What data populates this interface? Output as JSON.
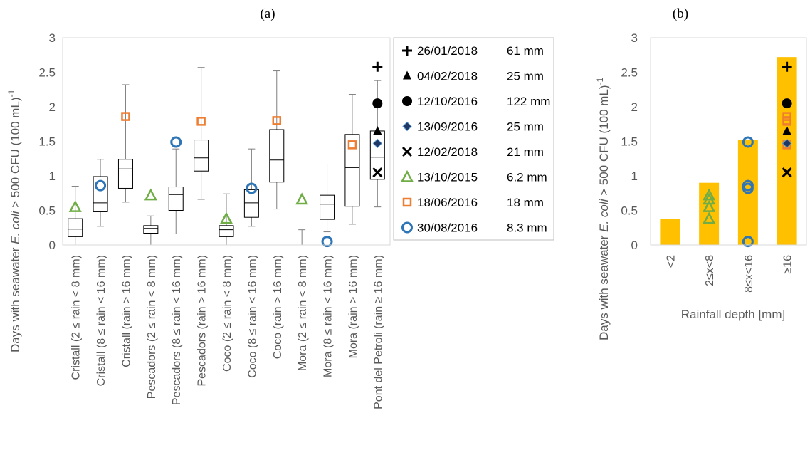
{
  "chart_data": [
    {
      "panel_label": "(a)",
      "type": "box",
      "ylabel_parts": [
        "Days with seawater ",
        "E. coli",
        " > 500 CFU (100 mL)",
        "-1"
      ],
      "ylim": [
        0,
        3
      ],
      "yticks": [
        0,
        0.5,
        1,
        1.5,
        2,
        2.5,
        3
      ],
      "ytick_labels": [
        "0",
        "0.5",
        "1",
        "1.5",
        "2",
        "2.5",
        "3"
      ],
      "grid": false,
      "categories": [
        "Cristall (2 ≤ rain < 8 mm)",
        "Cristall (8 ≤ rain < 16 mm)",
        "Cristall (rain > 16 mm)",
        "Pescadors (2 ≤ rain < 8 mm)",
        "Pescadors (8 ≤ rain < 16 mm)",
        "Pescadors (rain > 16 mm)",
        "Coco (2 ≤ rain < 8 mm)",
        "Coco (8 ≤ rain < 16 mm)",
        "Coco (rain > 16 mm)",
        "Mora (2 ≤ rain < 8 mm)",
        "Mora (8 ≤ rain < 16 mm)",
        "Mora (rain > 16 mm)",
        "Pont del Petroli (rain ≥ 16 mm)"
      ],
      "boxes": [
        {
          "min": 0.0,
          "q1": 0.12,
          "median": 0.23,
          "q3": 0.38,
          "max": 0.85
        },
        {
          "min": 0.27,
          "q1": 0.48,
          "median": 0.61,
          "q3": 0.99,
          "max": 1.24
        },
        {
          "min": 0.62,
          "q1": 0.82,
          "median": 1.1,
          "q3": 1.24,
          "max": 2.32
        },
        {
          "min": 0.0,
          "q1": 0.17,
          "median": 0.24,
          "q3": 0.28,
          "max": 0.42
        },
        {
          "min": 0.16,
          "q1": 0.5,
          "median": 0.73,
          "q3": 0.84,
          "max": 1.39
        },
        {
          "min": 0.66,
          "q1": 1.07,
          "median": 1.26,
          "q3": 1.52,
          "max": 2.57
        },
        {
          "min": 0.0,
          "q1": 0.12,
          "median": 0.22,
          "q3": 0.28,
          "max": 0.74
        },
        {
          "min": 0.27,
          "q1": 0.4,
          "median": 0.61,
          "q3": 0.8,
          "max": 1.39
        },
        {
          "min": 0.52,
          "q1": 0.91,
          "median": 1.23,
          "q3": 1.67,
          "max": 2.52
        },
        {
          "min": 0.0,
          "q1": 0.0,
          "median": 0.0,
          "q3": 0.0,
          "max": 0.22
        },
        {
          "min": 0.19,
          "q1": 0.37,
          "median": 0.59,
          "q3": 0.72,
          "max": 1.17
        },
        {
          "min": 0.3,
          "q1": 0.56,
          "median": 1.12,
          "q3": 1.6,
          "max": 2.18
        },
        {
          "min": 0.55,
          "q1": 0.95,
          "median": 1.27,
          "q3": 1.65,
          "max": 2.38
        }
      ],
      "points": [
        {
          "series": 5,
          "cat": 0,
          "y": 0.55
        },
        {
          "series": 7,
          "cat": 1,
          "y": 0.86
        },
        {
          "series": 6,
          "cat": 2,
          "y": 1.86
        },
        {
          "series": 5,
          "cat": 3,
          "y": 0.72
        },
        {
          "series": 7,
          "cat": 4,
          "y": 1.49
        },
        {
          "series": 6,
          "cat": 5,
          "y": 1.79
        },
        {
          "series": 5,
          "cat": 6,
          "y": 0.38
        },
        {
          "series": 7,
          "cat": 7,
          "y": 0.82
        },
        {
          "series": 6,
          "cat": 8,
          "y": 1.8
        },
        {
          "series": 5,
          "cat": 9,
          "y": 0.66
        },
        {
          "series": 7,
          "cat": 10,
          "y": 0.05
        },
        {
          "series": 6,
          "cat": 11,
          "y": 1.45
        },
        {
          "series": 0,
          "cat": 12,
          "y": 2.58
        },
        {
          "series": 2,
          "cat": 12,
          "y": 2.05
        },
        {
          "series": 1,
          "cat": 12,
          "y": 1.65
        },
        {
          "series": 3,
          "cat": 12,
          "y": 1.47
        },
        {
          "series": 4,
          "cat": 12,
          "y": 1.05
        }
      ],
      "legend_position": "right",
      "legend": [
        {
          "date": "26/01/2018",
          "depth": "61 mm",
          "marker": "plus",
          "color": "#000000"
        },
        {
          "date": "04/02/2018",
          "depth": "25 mm",
          "marker": "triangle-filled",
          "color": "#000000"
        },
        {
          "date": "12/10/2016",
          "depth": "122 mm",
          "marker": "circle-filled",
          "color": "#000000"
        },
        {
          "date": "13/09/2016",
          "depth": "25 mm",
          "marker": "diamond",
          "color": "#000000"
        },
        {
          "date": "12/02/2018",
          "depth": "21 mm",
          "marker": "cross",
          "color": "#000000"
        },
        {
          "date": "13/10/2015",
          "depth": "6.2 mm",
          "marker": "triangle-open",
          "color": "#70AD47"
        },
        {
          "date": "18/06/2016",
          "depth": "18 mm",
          "marker": "square-open",
          "color": "#ED7D31"
        },
        {
          "date": "30/08/2016",
          "depth": "8.3 mm",
          "marker": "circle-open",
          "color": "#2E75B6"
        }
      ]
    },
    {
      "panel_label": "(b)",
      "type": "bar",
      "ylabel_parts": [
        "Days with seawater ",
        "E. coli",
        " > 500 CFU (100 mL)",
        "-1"
      ],
      "xlabel": "Rainfall depth [mm]",
      "ylim": [
        0,
        3
      ],
      "yticks": [
        0,
        0.5,
        1,
        1.5,
        2,
        2.5,
        3
      ],
      "ytick_labels": [
        "0",
        "0.5",
        "1",
        "1.5",
        "2",
        "2.5",
        "3"
      ],
      "grid": false,
      "bar_color": "#FFC000",
      "categories": [
        "<2",
        "2≤x<8",
        "8≤x<16",
        "≥16"
      ],
      "values": [
        0.38,
        0.9,
        1.52,
        2.72
      ],
      "points": [
        {
          "series": 5,
          "cat": 1,
          "y": 0.72
        },
        {
          "series": 5,
          "cat": 1,
          "y": 0.66
        },
        {
          "series": 5,
          "cat": 1,
          "y": 0.55
        },
        {
          "series": 5,
          "cat": 1,
          "y": 0.38
        },
        {
          "series": 7,
          "cat": 2,
          "y": 1.49
        },
        {
          "series": 7,
          "cat": 2,
          "y": 0.86
        },
        {
          "series": 7,
          "cat": 2,
          "y": 0.82
        },
        {
          "series": 7,
          "cat": 2,
          "y": 0.05
        },
        {
          "series": 0,
          "cat": 3,
          "y": 2.58
        },
        {
          "series": 2,
          "cat": 3,
          "y": 2.05
        },
        {
          "series": 6,
          "cat": 3,
          "y": 1.86
        },
        {
          "series": 6,
          "cat": 3,
          "y": 1.8
        },
        {
          "series": 6,
          "cat": 3,
          "y": 1.79
        },
        {
          "series": 1,
          "cat": 3,
          "y": 1.65
        },
        {
          "series": 6,
          "cat": 3,
          "y": 1.45
        },
        {
          "series": 3,
          "cat": 3,
          "y": 1.47
        },
        {
          "series": 4,
          "cat": 3,
          "y": 1.05
        }
      ]
    }
  ]
}
